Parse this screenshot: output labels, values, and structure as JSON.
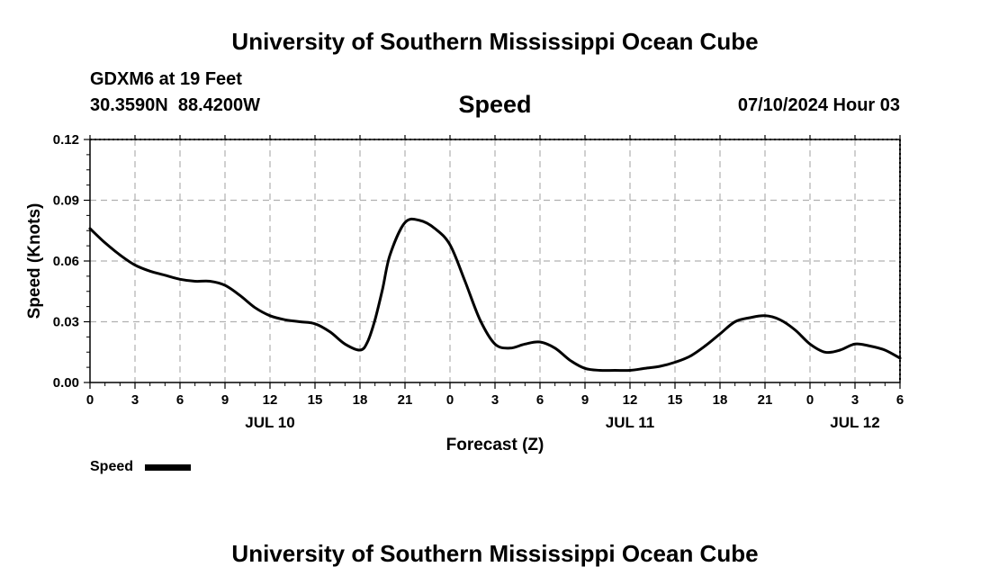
{
  "header": {
    "title": "University of Southern Mississippi Ocean Cube",
    "station": "GDXM6 at 19 Feet",
    "coords": "30.3590N  88.4200W",
    "chart_title": "Speed",
    "datetime": "07/10/2024 Hour 03"
  },
  "legend": {
    "label": "Speed"
  },
  "footer": {
    "title": "University of Southern Mississippi Ocean Cube"
  },
  "colors": {
    "line": "#000000",
    "grid": "#b0b0b0",
    "background": "#ffffff"
  },
  "chart_data": {
    "type": "line",
    "title": "Speed",
    "xlabel": "Forecast (Z)",
    "ylabel": "Speed (Knots)",
    "ylim": [
      0,
      0.12
    ],
    "yticks": [
      "0.00",
      "0.03",
      "0.06",
      "0.09",
      "0.12"
    ],
    "xlim": [
      0,
      54
    ],
    "xtick_labels": [
      "0",
      "3",
      "6",
      "9",
      "12",
      "15",
      "18",
      "21",
      "0",
      "3",
      "6",
      "9",
      "12",
      "15",
      "18",
      "21",
      "0",
      "3",
      "6"
    ],
    "date_labels": [
      {
        "label": "JUL 10",
        "x": 12
      },
      {
        "label": "JUL 11",
        "x": 36
      },
      {
        "label": "JUL 12",
        "x": 51
      }
    ],
    "grid": true,
    "series": [
      {
        "name": "Speed",
        "x": [
          0,
          1,
          2,
          3,
          4,
          5,
          6,
          7,
          8,
          9,
          10,
          11,
          12,
          13,
          14,
          15,
          16,
          17,
          18,
          18.5,
          19,
          19.5,
          20,
          21,
          22,
          23,
          24,
          25,
          26,
          27,
          28,
          29,
          30,
          31,
          32,
          33,
          34,
          35,
          36,
          37,
          38,
          39,
          40,
          41,
          42,
          43,
          44,
          45,
          46,
          47,
          48,
          49,
          50,
          51,
          52,
          53,
          54
        ],
        "values": [
          0.076,
          0.069,
          0.063,
          0.058,
          0.055,
          0.053,
          0.051,
          0.05,
          0.05,
          0.048,
          0.043,
          0.037,
          0.033,
          0.031,
          0.03,
          0.029,
          0.025,
          0.019,
          0.016,
          0.02,
          0.031,
          0.046,
          0.063,
          0.079,
          0.08,
          0.076,
          0.068,
          0.05,
          0.031,
          0.019,
          0.017,
          0.019,
          0.02,
          0.017,
          0.011,
          0.007,
          0.006,
          0.006,
          0.006,
          0.007,
          0.008,
          0.01,
          0.013,
          0.018,
          0.024,
          0.03,
          0.032,
          0.033,
          0.031,
          0.026,
          0.019,
          0.015,
          0.016,
          0.019,
          0.018,
          0.016,
          0.012
        ]
      }
    ]
  }
}
